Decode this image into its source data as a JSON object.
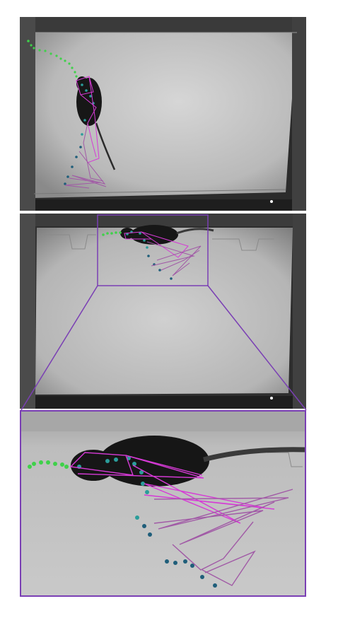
{
  "figure": {
    "description_panels": [
      "top-overview",
      "middle-overview",
      "zoomed-inset"
    ],
    "colors": {
      "trajectory_green": "#3fd14a",
      "keypoint_teal": "#2a9d9a",
      "keypoint_dark": "#1f5e7a",
      "skeleton_magenta": "#d63ad6",
      "skeleton_mauve": "#a15aa6",
      "zoom_box": "#7a3fb4",
      "arena_floor": "#c8c8c8",
      "arena_wall": "#6e6e6e",
      "mouse_body": "#151515"
    }
  }
}
